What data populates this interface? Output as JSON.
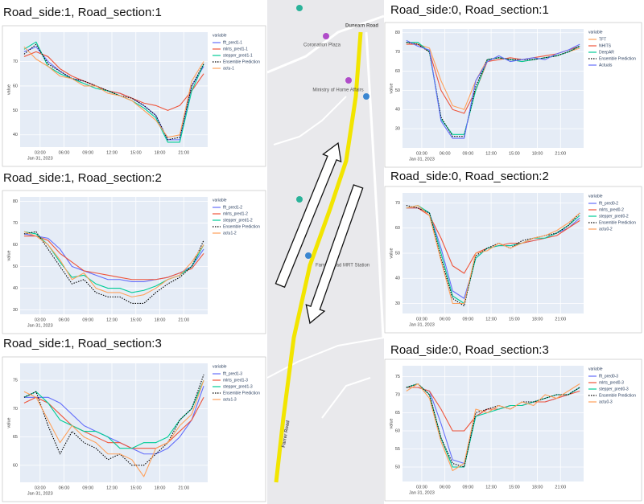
{
  "chart_data": [
    {
      "type": "line",
      "title": "Road_side:1, Road_section:1",
      "legend_title": "variable",
      "y_label": "value",
      "x_date": "Jan 31, 2023",
      "x": [
        1,
        2.5,
        4,
        5.5,
        7,
        8.5,
        10,
        11.5,
        13,
        14.5,
        16,
        17.5,
        19,
        20.5,
        22,
        23.5
      ],
      "xlim": [
        0.5,
        24
      ],
      "xticks": [
        {
          "value": 3,
          "label": "03:00"
        },
        {
          "value": 6,
          "label": "06:00"
        },
        {
          "value": 9,
          "label": "09:00"
        },
        {
          "value": 12,
          "label": "12:00"
        },
        {
          "value": 15,
          "label": "15:00"
        },
        {
          "value": 18,
          "label": "18:00"
        },
        {
          "value": 21,
          "label": "21:00"
        }
      ],
      "ylim": [
        35,
        82
      ],
      "yticks": [
        40,
        50,
        60,
        70
      ],
      "grid": true,
      "series": [
        {
          "name": "fft_pred1-1",
          "color": "#636efa",
          "values": [
            74,
            76,
            70,
            66,
            63,
            62,
            60,
            58,
            57,
            55,
            52,
            48,
            38,
            38,
            60,
            68
          ]
        },
        {
          "name": "mlrts_pred1-1",
          "color": "#ef553b",
          "values": [
            72,
            74,
            72,
            67,
            64,
            62,
            60,
            58,
            57,
            55,
            53,
            52,
            50,
            52,
            58,
            65
          ]
        },
        {
          "name": "stepper_pred1-1",
          "color": "#00cc96",
          "values": [
            75,
            78,
            68,
            65,
            63,
            61,
            59,
            58,
            56,
            54,
            51,
            47,
            37,
            37,
            58,
            69
          ]
        },
        {
          "name": "Ensemble Prediction",
          "color": "#000000",
          "line_style": "dotted",
          "values": [
            73,
            77,
            69,
            66,
            63,
            62,
            60,
            58,
            56,
            55,
            52,
            48,
            38,
            39,
            60,
            69
          ]
        },
        {
          "name": "actu-1",
          "color": "#ffa15a",
          "values": [
            76,
            71,
            68,
            64,
            63,
            60,
            60,
            57,
            56,
            54,
            50,
            46,
            39,
            40,
            62,
            70
          ]
        }
      ]
    },
    {
      "type": "line",
      "title": "Road_side:1, Road_section:2",
      "legend_title": "variable",
      "y_label": "value",
      "x_date": "Jan 31, 2023",
      "x": [
        1,
        2.5,
        4,
        5.5,
        7,
        8.5,
        10,
        11.5,
        13,
        14.5,
        16,
        17.5,
        19,
        20.5,
        22,
        23.5
      ],
      "xlim": [
        0.5,
        24
      ],
      "xticks": [
        {
          "value": 3,
          "label": "03:00"
        },
        {
          "value": 6,
          "label": "06:00"
        },
        {
          "value": 9,
          "label": "09:00"
        },
        {
          "value": 12,
          "label": "12:00"
        },
        {
          "value": 15,
          "label": "15:00"
        },
        {
          "value": 18,
          "label": "18:00"
        },
        {
          "value": 21,
          "label": "21:00"
        }
      ],
      "ylim": [
        28,
        82
      ],
      "yticks": [
        30,
        40,
        50,
        60,
        70,
        80
      ],
      "grid": true,
      "series": [
        {
          "name": "fft_pred1-2",
          "color": "#636efa",
          "values": [
            65,
            64,
            63,
            58,
            50,
            48,
            46,
            44,
            44,
            43,
            43,
            44,
            45,
            47,
            50,
            58
          ]
        },
        {
          "name": "mlrts_pred1-2",
          "color": "#ef553b",
          "values": [
            64,
            64,
            62,
            56,
            52,
            48,
            47,
            46,
            45,
            44,
            44,
            44,
            45,
            47,
            49,
            56
          ]
        },
        {
          "name": "stepper_pred1-2",
          "color": "#00cc96",
          "values": [
            66,
            65,
            60,
            52,
            45,
            46,
            42,
            40,
            40,
            38,
            39,
            41,
            44,
            46,
            50,
            60
          ]
        },
        {
          "name": "Ensemble Prediction",
          "color": "#000000",
          "line_style": "dotted",
          "values": [
            65,
            66,
            58,
            50,
            42,
            44,
            38,
            36,
            36,
            33,
            33,
            38,
            42,
            45,
            50,
            62
          ]
        },
        {
          "name": "actu1-2",
          "color": "#ffa15a",
          "values": [
            66,
            64,
            60,
            53,
            44,
            47,
            40,
            38,
            38,
            36,
            37,
            40,
            44,
            46,
            52,
            60
          ]
        }
      ]
    },
    {
      "type": "line",
      "title": "Road_side:1, Road_section:3",
      "legend_title": "variable",
      "y_label": "value",
      "x_date": "Jan 31, 2023",
      "x": [
        1,
        2.5,
        4,
        5.5,
        7,
        8.5,
        10,
        11.5,
        13,
        14.5,
        16,
        17.5,
        19,
        20.5,
        22,
        23.5
      ],
      "xlim": [
        0.5,
        24
      ],
      "xticks": [
        {
          "value": 3,
          "label": "03:00"
        },
        {
          "value": 6,
          "label": "06:00"
        },
        {
          "value": 9,
          "label": "09:00"
        },
        {
          "value": 12,
          "label": "12:00"
        },
        {
          "value": 15,
          "label": "15:00"
        },
        {
          "value": 18,
          "label": "18:00"
        },
        {
          "value": 21,
          "label": "21:00"
        }
      ],
      "ylim": [
        57,
        78
      ],
      "yticks": [
        60,
        65,
        70,
        75
      ],
      "grid": true,
      "series": [
        {
          "name": "fft_pred1-3",
          "color": "#636efa",
          "values": [
            72,
            72,
            72,
            71,
            69,
            67,
            66,
            65,
            64,
            63,
            62,
            62,
            63,
            65,
            68,
            74
          ]
        },
        {
          "name": "mlrts_pred1-3",
          "color": "#ef553b",
          "values": [
            71,
            72,
            71,
            69,
            67,
            66,
            65,
            64,
            64,
            63,
            63,
            63,
            64,
            66,
            68,
            72
          ]
        },
        {
          "name": "stepper_pred1-3",
          "color": "#00cc96",
          "values": [
            72,
            73,
            71,
            68,
            67,
            66,
            66,
            65,
            63,
            63,
            64,
            64,
            65,
            68,
            70,
            75
          ]
        },
        {
          "name": "Ensemble Prediction",
          "color": "#000000",
          "line_style": "dotted",
          "values": [
            72,
            73,
            67,
            62,
            66,
            64,
            63,
            61,
            62,
            60,
            60,
            62,
            64,
            68,
            70,
            76
          ]
        },
        {
          "name": "actu1-3",
          "color": "#ffa15a",
          "values": [
            73,
            72,
            68,
            64,
            67,
            65,
            64,
            62,
            62,
            61,
            58,
            63,
            64,
            67,
            69,
            75
          ]
        }
      ]
    },
    {
      "type": "line",
      "title": "Road_side:0, Road_section:1",
      "legend_title": "variable",
      "y_label": "value",
      "x_date": "Jan 31, 2023",
      "x": [
        1,
        2.5,
        4,
        5.5,
        7,
        8.5,
        10,
        11.5,
        13,
        14.5,
        16,
        17.5,
        19,
        20.5,
        22,
        23.5
      ],
      "xlim": [
        0.5,
        24
      ],
      "xticks": [
        {
          "value": 3,
          "label": "03:00"
        },
        {
          "value": 6,
          "label": "06:00"
        },
        {
          "value": 9,
          "label": "09:00"
        },
        {
          "value": 12,
          "label": "12:00"
        },
        {
          "value": 15,
          "label": "15:00"
        },
        {
          "value": 18,
          "label": "18:00"
        },
        {
          "value": 21,
          "label": "21:00"
        }
      ],
      "ylim": [
        20,
        82
      ],
      "yticks": [
        30,
        40,
        50,
        60,
        70,
        80
      ],
      "grid": true,
      "series": [
        {
          "name": "TFT",
          "color": "#ffa15a",
          "values": [
            75,
            74,
            72,
            55,
            42,
            40,
            55,
            66,
            67,
            66,
            65,
            66,
            67,
            68,
            70,
            72
          ]
        },
        {
          "name": "NHITS",
          "color": "#ef553b",
          "values": [
            74,
            74,
            70,
            50,
            40,
            38,
            50,
            65,
            66,
            67,
            66,
            67,
            68,
            69,
            71,
            73
          ]
        },
        {
          "name": "DeepAR",
          "color": "#00cc96",
          "values": [
            75,
            75,
            70,
            35,
            27,
            27,
            50,
            66,
            67,
            66,
            65,
            66,
            67,
            68,
            70,
            73
          ]
        },
        {
          "name": "Ensemble Prediction",
          "color": "#000000",
          "line_style": "dotted",
          "values": [
            75,
            74,
            70,
            36,
            26,
            26,
            52,
            66,
            67,
            66,
            66,
            66,
            67,
            68,
            70,
            73
          ]
        },
        {
          "name": "Actuals",
          "color": "#636efa",
          "values": [
            76,
            73,
            71,
            34,
            25,
            25,
            55,
            65,
            68,
            65,
            66,
            67,
            66,
            69,
            71,
            74
          ]
        }
      ]
    },
    {
      "type": "line",
      "title": "Road_side:0, Road_section:2",
      "legend_title": "variable",
      "y_label": "value",
      "x_date": "Jan 31, 2023",
      "x": [
        1,
        2.5,
        4,
        5.5,
        7,
        8.5,
        10,
        11.5,
        13,
        14.5,
        16,
        17.5,
        19,
        20.5,
        22,
        23.5
      ],
      "xlim": [
        0.5,
        24
      ],
      "xticks": [
        {
          "value": 3,
          "label": "03:00"
        },
        {
          "value": 6,
          "label": "06:00"
        },
        {
          "value": 9,
          "label": "09:00"
        },
        {
          "value": 12,
          "label": "12:00"
        },
        {
          "value": 15,
          "label": "15:00"
        },
        {
          "value": 18,
          "label": "18:00"
        },
        {
          "value": 21,
          "label": "21:00"
        }
      ],
      "ylim": [
        26,
        74
      ],
      "yticks": [
        30,
        40,
        50,
        60,
        70
      ],
      "grid": true,
      "series": [
        {
          "name": "fft_pred0-2",
          "color": "#636efa",
          "values": [
            68,
            68,
            66,
            52,
            35,
            32,
            48,
            52,
            53,
            53,
            54,
            55,
            56,
            58,
            60,
            64
          ]
        },
        {
          "name": "mlrts_pred0-2",
          "color": "#ef553b",
          "values": [
            68,
            68,
            65,
            56,
            45,
            42,
            50,
            52,
            53,
            54,
            54,
            55,
            56,
            57,
            60,
            63
          ]
        },
        {
          "name": "stepper_pred0-2",
          "color": "#00cc96",
          "values": [
            68,
            69,
            66,
            50,
            33,
            30,
            48,
            52,
            53,
            53,
            54,
            56,
            56,
            58,
            61,
            65
          ]
        },
        {
          "name": "Ensemble Prediction",
          "color": "#000000",
          "line_style": "dotted",
          "values": [
            69,
            68,
            66,
            48,
            32,
            29,
            49,
            52,
            54,
            52,
            55,
            56,
            57,
            58,
            61,
            66
          ]
        },
        {
          "name": "actu0-2",
          "color": "#ffa15a",
          "values": [
            68,
            69,
            65,
            47,
            30,
            30,
            50,
            51,
            54,
            52,
            54,
            56,
            57,
            59,
            62,
            66
          ]
        }
      ]
    },
    {
      "type": "line",
      "title": "Road_side:0, Road_section:3",
      "legend_title": "variable",
      "y_label": "value",
      "x_date": "Jan 31, 2023",
      "x": [
        1,
        2.5,
        4,
        5.5,
        7,
        8.5,
        10,
        11.5,
        13,
        14.5,
        16,
        17.5,
        19,
        20.5,
        22,
        23.5
      ],
      "xlim": [
        0.5,
        24
      ],
      "xticks": [
        {
          "value": 3,
          "label": "03:00"
        },
        {
          "value": 6,
          "label": "06:00"
        },
        {
          "value": 9,
          "label": "09:00"
        },
        {
          "value": 12,
          "label": "12:00"
        },
        {
          "value": 15,
          "label": "15:00"
        },
        {
          "value": 18,
          "label": "18:00"
        },
        {
          "value": 21,
          "label": "21:00"
        }
      ],
      "ylim": [
        46,
        78
      ],
      "yticks": [
        50,
        55,
        60,
        65,
        70,
        75
      ],
      "grid": true,
      "series": [
        {
          "name": "fft_pred0-3",
          "color": "#636efa",
          "values": [
            72,
            72,
            71,
            62,
            52,
            51,
            64,
            66,
            66,
            67,
            67,
            68,
            68,
            69,
            70,
            72
          ]
        },
        {
          "name": "mlrts_pred0-3",
          "color": "#ef553b",
          "values": [
            72,
            72,
            71,
            66,
            60,
            60,
            64,
            66,
            66,
            67,
            67,
            68,
            68,
            69,
            70,
            71
          ]
        },
        {
          "name": "stepper_pred0-3",
          "color": "#00cc96",
          "values": [
            72,
            73,
            70,
            58,
            50,
            50,
            64,
            65,
            66,
            67,
            67,
            68,
            69,
            70,
            70,
            72
          ]
        },
        {
          "name": "Ensemble Prediction",
          "color": "#000000",
          "line_style": "dotted",
          "values": [
            72,
            73,
            70,
            58,
            51,
            50,
            65,
            66,
            67,
            66,
            68,
            68,
            69,
            70,
            70,
            72
          ]
        },
        {
          "name": "actu0-3",
          "color": "#ffa15a",
          "values": [
            71,
            73,
            69,
            57,
            49,
            51,
            66,
            65,
            67,
            66,
            68,
            67,
            70,
            69,
            71,
            73
          ]
        }
      ]
    }
  ],
  "map": {
    "labels": [
      "Dunearn Road",
      "Coronation Plaza",
      "Ministry of Home Affairs",
      "Farrer Road MRT Station",
      "Farrer Road"
    ]
  }
}
